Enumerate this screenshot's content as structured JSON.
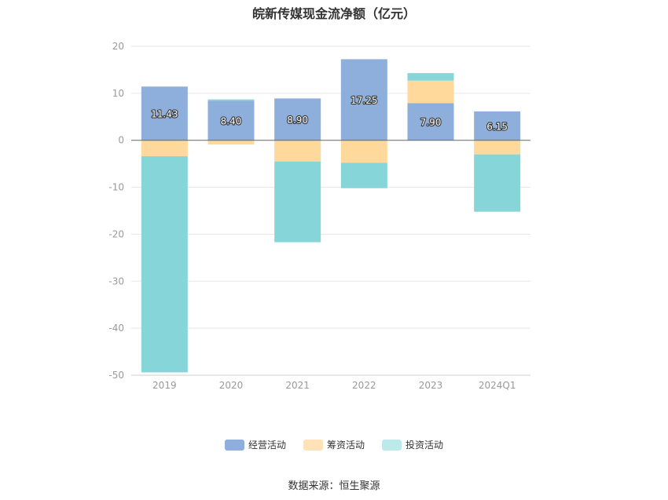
{
  "title": "皖新传媒现金流净额（亿元）",
  "source": "数据来源：恒生聚源",
  "colors": {
    "operating": "#8EAEDB",
    "financing": "#FFD89C",
    "investing": "#86D6D9",
    "grid": "#E6E6E6",
    "axis": "#666666",
    "tick_text": "#999999"
  },
  "legend": [
    {
      "label": "经营活动",
      "color": "#8EAEDB"
    },
    {
      "label": "筹资活动",
      "color": "#FFE2B8"
    },
    {
      "label": "投资活动",
      "color": "#BCE9EA"
    }
  ],
  "chart_data": {
    "type": "bar",
    "stacked": true,
    "categories": [
      "2019",
      "2020",
      "2021",
      "2022",
      "2023",
      "2024Q1"
    ],
    "series": [
      {
        "name": "经营活动",
        "values": [
          11.43,
          8.4,
          8.9,
          17.25,
          7.9,
          6.15
        ]
      },
      {
        "name": "筹资活动",
        "values": [
          -3.4,
          -0.9,
          -4.5,
          -4.8,
          4.8,
          -3.0
        ]
      },
      {
        "name": "投资活动",
        "values": [
          -46.0,
          0.3,
          -17.2,
          -5.4,
          1.6,
          -12.2
        ]
      }
    ],
    "data_labels": [
      "11.43",
      "8.40",
      "8.90",
      "17.25",
      "7.90",
      "6.15"
    ],
    "yticks": [
      20,
      10,
      0,
      -10,
      -20,
      -30,
      -40,
      -50
    ],
    "ylim": [
      -50,
      20
    ],
    "grid": true,
    "legend_position": "bottom",
    "title": "皖新传媒现金流净额（亿元）",
    "xlabel": "",
    "ylabel": ""
  }
}
